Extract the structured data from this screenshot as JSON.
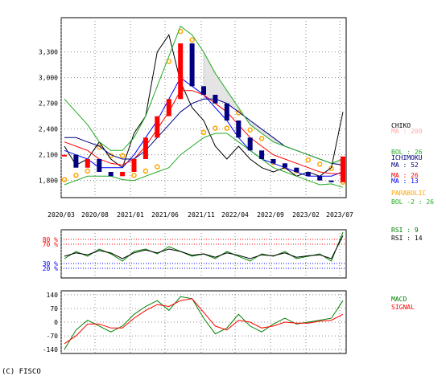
{
  "footer": {
    "copyright": "(C) FISCO"
  },
  "colors": {
    "price_up": "#ff0000",
    "price_down": "#000080",
    "chiko": "#000000",
    "ma200": "#ffaaaa",
    "ma52": "#000080",
    "ma26": "#ff0000",
    "ma13": "#0000ff",
    "bollinger": "#22aa22",
    "parabolic": "#ffa500",
    "cloud": "#aaaaaa",
    "rsi9": "#008000",
    "rsi14": "#000000",
    "macd": "#008000",
    "signal": "#ff0000",
    "ref_upper": "#ff0000",
    "ref_lower": "#0000ff"
  },
  "chart_data": [
    {
      "type": "line",
      "panel": "price",
      "y_ticks": [
        "3,300",
        "3,000",
        "2,700",
        "2,400",
        "2,100",
        "1,800"
      ],
      "ylim": [
        1600,
        3700
      ],
      "x_ticks": [
        "2020/03",
        "2020/08",
        "2021/01",
        "2021/06",
        "2021/11",
        "2022/04",
        "2022/09",
        "2023/02",
        "2023/07"
      ],
      "grid": true,
      "legend": [
        {
          "label": "CHIKO",
          "color_key": "chiko"
        },
        {
          "label": "MA : 200",
          "color_key": "ma200"
        },
        {
          "label": "BOL : 26",
          "color_key": "bollinger"
        },
        {
          "label": "ICHIMOKU",
          "color_key": "price_down"
        },
        {
          "label": "MA : 52",
          "color_key": "ma52"
        },
        {
          "label": "MA : 26",
          "color_key": "ma26"
        },
        {
          "label": "MA : 13",
          "color_key": "ma13"
        },
        {
          "label": "PARABOLIC",
          "color_key": "parabolic"
        },
        {
          "label": "BOL -2 : 26",
          "color_key": "bollinger"
        }
      ],
      "series": [
        {
          "name": "CHIKO",
          "values": [
            2200,
            1980,
            2050,
            2250,
            2050,
            1950,
            2350,
            2550,
            3300,
            3500,
            2950,
            2650,
            2500,
            2200,
            2050,
            2200,
            2050,
            1950,
            1900,
            1950,
            1850,
            1900,
            1850,
            1950,
            2600
          ]
        },
        {
          "name": "MA : 13",
          "values": [
            2150,
            2100,
            2050,
            1950,
            1950,
            1950,
            2100,
            2300,
            2500,
            2750,
            3000,
            2900,
            2800,
            2650,
            2500,
            2300,
            2150,
            2050,
            2000,
            1950,
            1900,
            1850,
            1850,
            1850,
            1900
          ]
        },
        {
          "name": "MA : 26",
          "values": [
            2250,
            2200,
            2150,
            2050,
            2000,
            1980,
            2050,
            2200,
            2400,
            2600,
            2850,
            2850,
            2800,
            2700,
            2600,
            2450,
            2300,
            2200,
            2100,
            2050,
            2000,
            1950,
            1900,
            1880,
            1880
          ]
        },
        {
          "name": "MA : 52",
          "values": [
            2300,
            2300,
            2250,
            2200,
            2100,
            2050,
            2050,
            2150,
            2300,
            2450,
            2600,
            2700,
            2750,
            2750,
            2700,
            2600,
            2500,
            2400,
            2300,
            2200,
            2150,
            2100,
            2050,
            2000,
            1980
          ]
        },
        {
          "name": "BOL : 26",
          "values": [
            2750,
            2600,
            2450,
            2250,
            2150,
            2150,
            2300,
            2550,
            2900,
            3250,
            3600,
            3500,
            3300,
            3050,
            2850,
            2650,
            2450,
            2350,
            2250,
            2200,
            2150,
            2100,
            2050,
            2000,
            2050
          ]
        },
        {
          "name": "BOL -2 : 26",
          "values": [
            1750,
            1800,
            1850,
            1850,
            1850,
            1810,
            1800,
            1850,
            1900,
            1950,
            2100,
            2200,
            2300,
            2350,
            2350,
            2250,
            2150,
            2050,
            1950,
            1900,
            1850,
            1800,
            1750,
            1760,
            1720
          ]
        }
      ],
      "price": [
        2100,
        1950,
        2050,
        1900,
        1850,
        1900,
        2050,
        2300,
        2550,
        2750,
        3400,
        2900,
        2800,
        2700,
        2500,
        2300,
        2150,
        2050,
        2000,
        1950,
        1900,
        1850,
        1800,
        1780,
        2080
      ]
    },
    {
      "type": "line",
      "panel": "rsi",
      "y_ticks": [
        "80 %",
        "70 %",
        "30 %",
        "20 %"
      ],
      "ylim": [
        0,
        100
      ],
      "legend": [
        {
          "label": "RSI : 9",
          "color_key": "rsi9"
        },
        {
          "label": "RSI : 14",
          "color_key": "rsi14"
        }
      ],
      "series": [
        {
          "name": "RSI : 9",
          "values": [
            40,
            55,
            45,
            60,
            50,
            35,
            55,
            60,
            50,
            65,
            55,
            45,
            50,
            40,
            55,
            45,
            35,
            50,
            45,
            55,
            40,
            45,
            50,
            35,
            95
          ]
        },
        {
          "name": "RSI : 14",
          "values": [
            45,
            52,
            48,
            57,
            52,
            40,
            52,
            58,
            52,
            60,
            55,
            47,
            50,
            43,
            52,
            47,
            40,
            48,
            46,
            52,
            43,
            46,
            48,
            40,
            88
          ]
        }
      ]
    },
    {
      "type": "line",
      "panel": "macd",
      "y_ticks": [
        "140",
        "70",
        "0",
        "-70",
        "-140"
      ],
      "ylim": [
        -160,
        160
      ],
      "legend": [
        {
          "label": "MACD",
          "color_key": "macd"
        },
        {
          "label": "SIGNAL",
          "color_key": "signal"
        }
      ],
      "series": [
        {
          "name": "MACD",
          "values": [
            -140,
            -40,
            10,
            -20,
            -50,
            -20,
            40,
            80,
            110,
            60,
            130,
            120,
            20,
            -60,
            -30,
            40,
            -20,
            -50,
            -10,
            20,
            -10,
            0,
            10,
            20,
            110
          ]
        },
        {
          "name": "SIGNAL",
          "values": [
            -110,
            -70,
            -10,
            -10,
            -30,
            -30,
            20,
            60,
            90,
            80,
            110,
            120,
            50,
            -20,
            -40,
            10,
            0,
            -30,
            -20,
            0,
            -5,
            -5,
            5,
            10,
            40
          ]
        }
      ]
    }
  ]
}
